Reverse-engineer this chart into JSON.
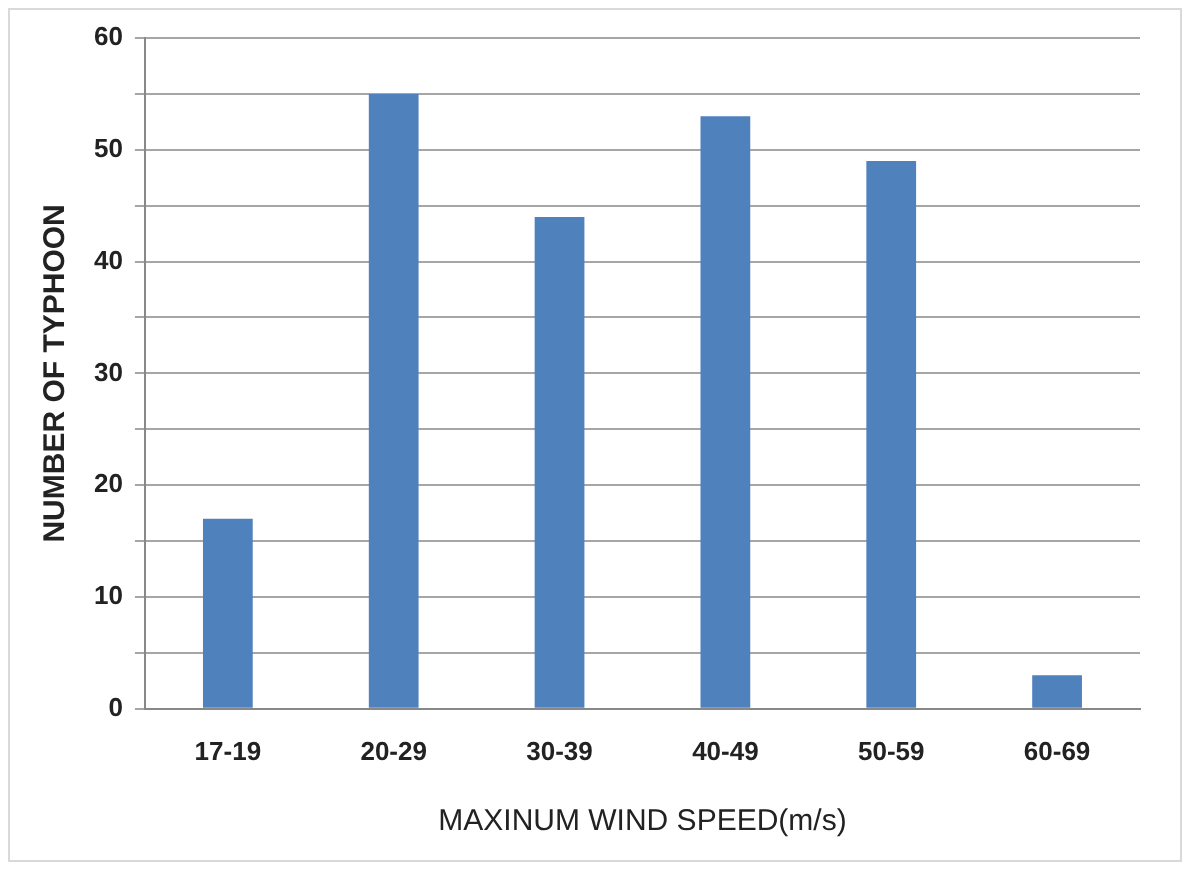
{
  "chart_data": {
    "type": "bar",
    "xlabel": "MAXINUM WIND SPEED(m/s)",
    "ylabel": "NUMBER OF TYPHOON",
    "categories": [
      "17-19",
      "20-29",
      "30-39",
      "40-49",
      "50-59",
      "60-69"
    ],
    "values": [
      17,
      55,
      44,
      53,
      49,
      3
    ],
    "color": "#4f81bd",
    "ylim": [
      0,
      60
    ],
    "yticks": [
      0,
      {
        "value": 5,
        "label": null
      },
      10,
      {
        "value": 15,
        "label": null
      },
      20,
      {
        "value": 25,
        "label": null
      },
      30,
      {
        "value": 35,
        "label": null
      },
      40,
      {
        "value": 45,
        "label": null
      },
      50,
      {
        "value": 55,
        "label": null
      },
      60
    ],
    "grid": "y"
  }
}
